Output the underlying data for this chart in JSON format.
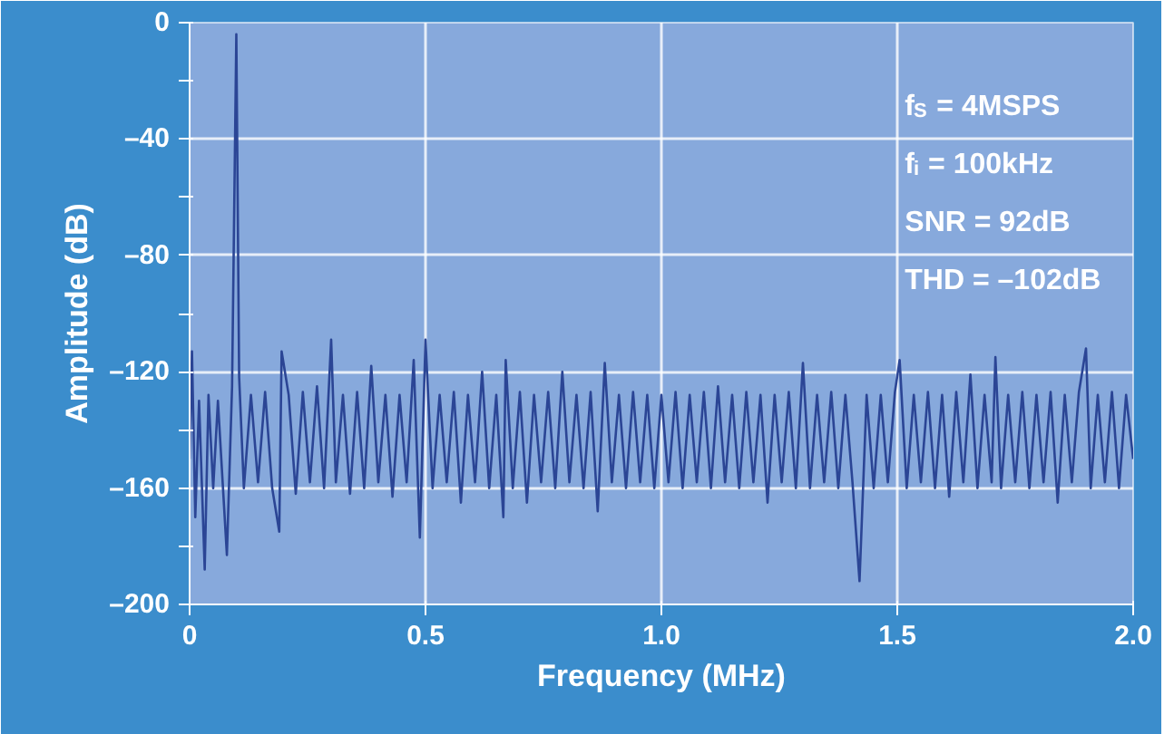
{
  "chart_data": {
    "type": "line",
    "xlabel": "Frequency (MHz)",
    "ylabel": "Amplitude (dB)",
    "annotations": [
      "f$_{S}$ = 4MSPS",
      "f$_{i}$ = 100kHz",
      "SNR = 92dB",
      "THD = –102dB"
    ],
    "xlim": [
      0,
      2.0
    ],
    "xticks": [
      0,
      0.5,
      {
        "value": 1.0,
        "label": "1.0"
      },
      1.5,
      {
        "value": 2.0,
        "label": "2.0"
      }
    ],
    "ylim": [
      -200,
      0
    ],
    "yticks": [
      {
        "value": -200,
        "label": "–200"
      },
      {
        "value": -180,
        "label": null
      },
      {
        "value": -160,
        "label": "–160"
      },
      {
        "value": -140,
        "label": null
      },
      {
        "value": -120,
        "label": "–120"
      },
      {
        "value": -100,
        "label": null
      },
      {
        "value": -80,
        "label": "–80"
      },
      {
        "value": -60,
        "label": null
      },
      {
        "value": -40,
        "label": "–40"
      },
      {
        "value": -20,
        "label": null
      },
      0
    ],
    "grid": true,
    "line_style": "solid",
    "series": [
      {
        "color": "#2b4595",
        "x": [
          0,
          0.005,
          0.012,
          0.02,
          0.032,
          0.04,
          0.05,
          0.06,
          0.07,
          0.079,
          0.09,
          0.099,
          0.105,
          0.115,
          0.13,
          0.145,
          0.16,
          0.175,
          0.19,
          0.195,
          0.21,
          0.225,
          0.24,
          0.255,
          0.27,
          0.285,
          0.3,
          0.31,
          0.325,
          0.34,
          0.355,
          0.37,
          0.385,
          0.4,
          0.415,
          0.43,
          0.445,
          0.46,
          0.475,
          0.488,
          0.5,
          0.515,
          0.53,
          0.545,
          0.56,
          0.575,
          0.59,
          0.605,
          0.62,
          0.635,
          0.65,
          0.665,
          0.67,
          0.685,
          0.7,
          0.715,
          0.73,
          0.745,
          0.76,
          0.775,
          0.79,
          0.805,
          0.82,
          0.835,
          0.85,
          0.865,
          0.88,
          0.895,
          0.91,
          0.925,
          0.94,
          0.955,
          0.97,
          0.985,
          1.0,
          1.015,
          1.03,
          1.045,
          1.06,
          1.075,
          1.09,
          1.105,
          1.12,
          1.135,
          1.15,
          1.165,
          1.18,
          1.195,
          1.21,
          1.225,
          1.24,
          1.255,
          1.27,
          1.285,
          1.3,
          1.315,
          1.33,
          1.345,
          1.36,
          1.375,
          1.39,
          1.405,
          1.42,
          1.435,
          1.45,
          1.465,
          1.48,
          1.495,
          1.505,
          1.52,
          1.535,
          1.55,
          1.565,
          1.58,
          1.595,
          1.61,
          1.625,
          1.64,
          1.655,
          1.67,
          1.685,
          1.7,
          1.708,
          1.72,
          1.735,
          1.75,
          1.765,
          1.78,
          1.795,
          1.81,
          1.825,
          1.84,
          1.855,
          1.87,
          1.885,
          1.9,
          1.91,
          1.925,
          1.94,
          1.955,
          1.97,
          1.985,
          2.0
        ],
        "values": [
          -150,
          -113,
          -170,
          -130,
          -188,
          -128,
          -160,
          -130,
          -158,
          -183,
          -125,
          -4,
          -122,
          -160,
          -128,
          -158,
          -127,
          -160,
          -175,
          -113,
          -128,
          -162,
          -127,
          -158,
          -125,
          -160,
          -109,
          -158,
          -128,
          -162,
          -127,
          -160,
          -118,
          -158,
          -128,
          -163,
          -128,
          -158,
          -116,
          -177,
          -109,
          -160,
          -128,
          -158,
          -127,
          -165,
          -128,
          -158,
          -120,
          -160,
          -128,
          -170,
          -116,
          -160,
          -127,
          -165,
          -128,
          -158,
          -127,
          -160,
          -120,
          -158,
          -128,
          -160,
          -127,
          -168,
          -117,
          -158,
          -128,
          -160,
          -127,
          -158,
          -128,
          -160,
          -128,
          -158,
          -127,
          -160,
          -128,
          -158,
          -127,
          -160,
          -125,
          -158,
          -128,
          -160,
          -127,
          -158,
          -128,
          -165,
          -128,
          -158,
          -127,
          -160,
          -117,
          -160,
          -128,
          -158,
          -127,
          -160,
          -128,
          -158,
          -192,
          -128,
          -160,
          -128,
          -158,
          -127,
          -116,
          -160,
          -128,
          -158,
          -127,
          -160,
          -128,
          -163,
          -127,
          -158,
          -121,
          -160,
          -128,
          -158,
          -115,
          -160,
          -128,
          -158,
          -127,
          -160,
          -128,
          -158,
          -127,
          -165,
          -128,
          -158,
          -127,
          -112,
          -160,
          -128,
          -158,
          -127,
          -160,
          -128,
          -150
        ]
      }
    ]
  }
}
